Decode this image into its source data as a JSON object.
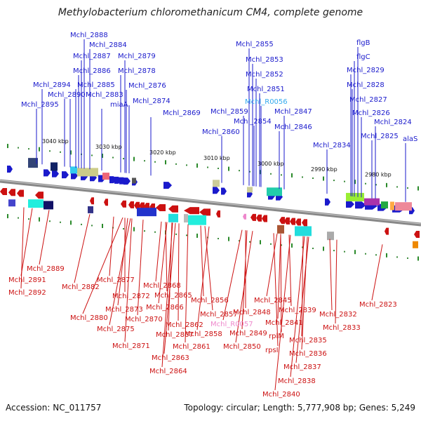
{
  "title": "Methylobacterium chloromethanicum CM4, complete genome",
  "footer": {
    "accession": "Accession: NC_011757",
    "stats": "Topology: circular; Length: 5,777,908 bp; Genes: 5,249"
  },
  "scale_ticks": [
    "3040 kbp",
    "3030 kbp",
    "3020 kbp",
    "3010 kbp",
    "3000 kbp",
    "2990 kbp",
    "2980 kbp"
  ],
  "forward_labels": [
    "Mchl_2888",
    "Mchl_2884",
    "Mchl_2887",
    "Mchl_2879",
    "Mchl_2886",
    "Mchl_2878",
    "Mchl_2894",
    "Mchl_2885",
    "Mchl_2876",
    "Mchl_2890",
    "Mchl_2883",
    "Mchl_2895",
    "miaA",
    "Mchl_2874",
    "Mchl_2869",
    "Mchl_2855",
    "Mchl_2853",
    "Mchl_2852",
    "Mchl_2851",
    "Mchl_R0056",
    "Mchl_2859",
    "Mchl_2847",
    "Mchl_2854",
    "Mchl_2860",
    "Mchl_2846",
    "flgB",
    "flgC",
    "Mchl_2829",
    "Mchl_2828",
    "Mchl_2827",
    "Mchl_2826",
    "Mchl_2824",
    "Mchl_2825",
    "Mchl_2834",
    "alaS"
  ],
  "reverse_labels": [
    "Mchl_2889",
    "Mchl_2891",
    "Mchl_2892",
    "Mchl_2882",
    "Mchl_2877",
    "Mchl_2880",
    "Mchl_2872",
    "Mchl_2873",
    "Mchl_2875",
    "Mchl_2868",
    "Mchl_2865",
    "Mchl_2866",
    "Mchl_2870",
    "Mchl_2867",
    "Mchl_2871",
    "Mchl_2862",
    "Mchl_2856",
    "Mchl_2857",
    "Mchl_2863",
    "Mchl_2861",
    "Mchl_2858",
    "Mchl_2864",
    "Mchl_R0057",
    "Mchl_2848",
    "Mchl_2849",
    "Mchl_2850",
    "Mchl_2845",
    "Mchl_2839",
    "Mchl_2841",
    "rplM",
    "Mchl_2835",
    "rpsI",
    "Mchl_2836",
    "Mchl_2837",
    "Mchl_2838",
    "Mchl_2840",
    "Mchl_2832",
    "Mchl_2833",
    "Mchl_2823"
  ],
  "colors": {
    "forward_gene": "#1a1acc",
    "reverse_gene": "#cc1111",
    "forward_rna": "#33aaee",
    "reverse_rna": "#ee88cc",
    "backbone": "#888888",
    "gc_skew_positive": "#2a8a2a"
  }
}
